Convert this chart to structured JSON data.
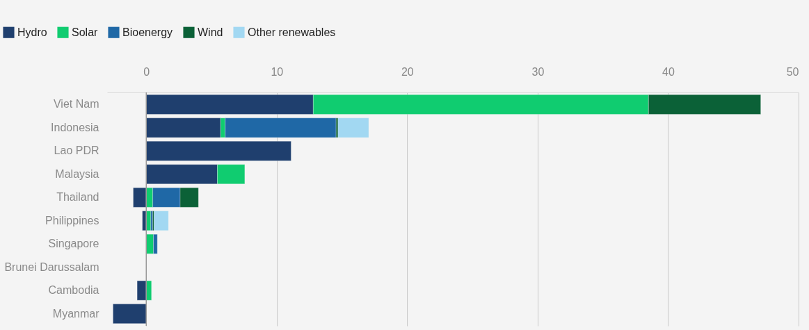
{
  "chart_data": {
    "type": "bar",
    "orientation": "horizontal",
    "stacked": true,
    "categories": [
      "Viet Nam",
      "Indonesia",
      "Lao PDR",
      "Malaysia",
      "Thailand",
      "Philippines",
      "Singapore",
      "Brunei Darussalam",
      "Cambodia",
      "Myanmar"
    ],
    "series": [
      {
        "name": "Hydro",
        "color": "#1f3f6e",
        "values": [
          12.8,
          5.7,
          11.1,
          5.45,
          -1.0,
          -0.3,
          null,
          null,
          -0.7,
          -2.55
        ]
      },
      {
        "name": "Solar",
        "color": "#10cc70",
        "values": [
          25.7,
          0.35,
          null,
          2.1,
          0.5,
          0.35,
          0.55,
          null,
          0.4,
          null
        ]
      },
      {
        "name": "Bioenergy",
        "color": "#1f68a6",
        "values": [
          null,
          8.5,
          null,
          null,
          2.1,
          0.15,
          0.3,
          null,
          null,
          null
        ]
      },
      {
        "name": "Wind",
        "color": "#0b6137",
        "values": [
          8.6,
          0.15,
          null,
          null,
          1.4,
          0.1,
          null,
          null,
          null,
          null
        ]
      },
      {
        "name": "Other renewables",
        "color": "#a2d8f2",
        "values": [
          null,
          2.35,
          null,
          null,
          null,
          1.1,
          null,
          null,
          null,
          null
        ]
      }
    ],
    "xlim": [
      -3,
      50
    ],
    "xticks": [
      0,
      10,
      20,
      30,
      40,
      50
    ],
    "grid": "x",
    "legend": "top left",
    "ref_lines": [
      {
        "axis": "x",
        "value": 0,
        "color": "#999999"
      }
    ]
  }
}
